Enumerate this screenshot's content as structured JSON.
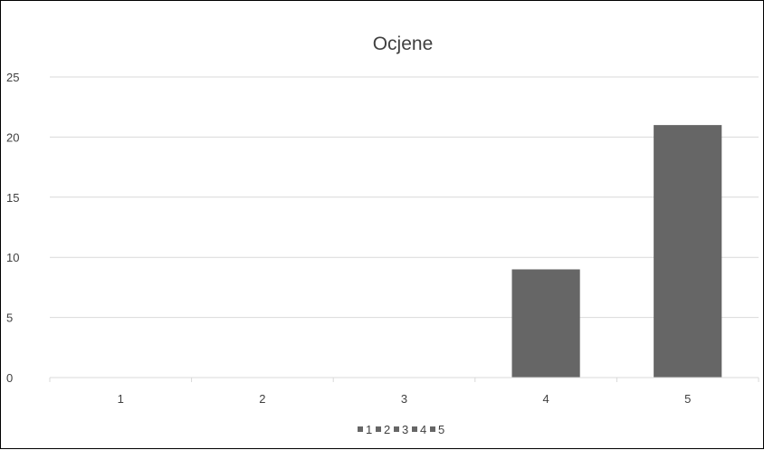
{
  "chart_data": {
    "type": "bar",
    "title": "Ocjene",
    "categories": [
      "1",
      "2",
      "3",
      "4",
      "5"
    ],
    "values": [
      0,
      0,
      0,
      9,
      21
    ],
    "ylim": [
      0,
      25
    ],
    "yticks": [
      0,
      5,
      10,
      15,
      20,
      25
    ],
    "grid": true,
    "legend": {
      "position": "bottom",
      "entries": [
        "1",
        "2",
        "3",
        "4",
        "5"
      ]
    },
    "bar_color": "#666666",
    "grid_color": "#d9d9d9"
  }
}
